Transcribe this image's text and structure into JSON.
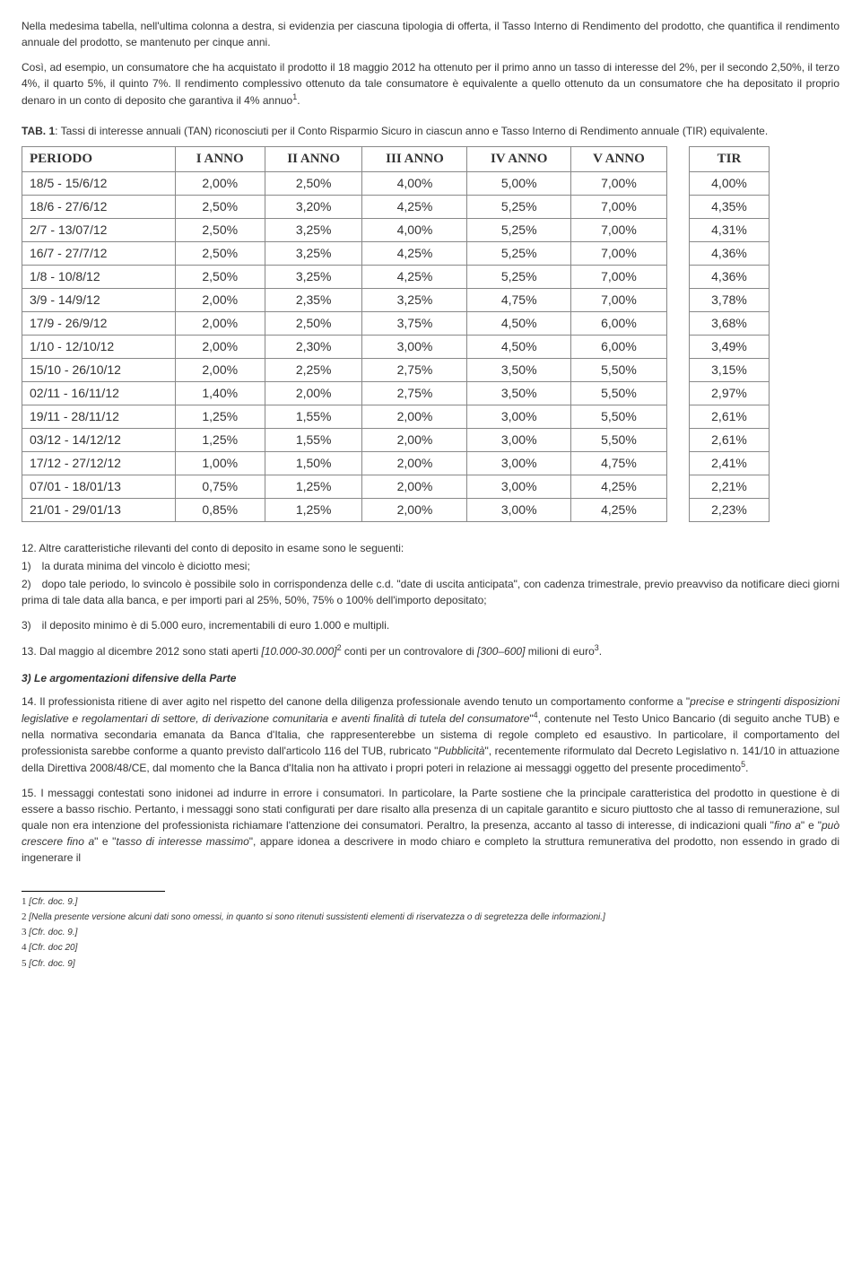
{
  "para1": "Nella medesima tabella, nell'ultima colonna a destra, si evidenzia per ciascuna tipologia di offerta, il Tasso Interno di Rendimento del prodotto, che quantifica il rendimento annuale del prodotto, se mantenuto per cinque anni.",
  "para2_a": "Così, ad esempio, un consumatore che ha acquistato il prodotto il 18 maggio 2012 ha ottenuto per il primo anno un tasso di interesse del 2%, per il secondo 2,50%, il terzo 4%, il quarto 5%, il quinto 7%. Il rendimento complessivo ottenuto da tale consumatore è equivalente a quello ottenuto da un consumatore che ha depositato il proprio denaro in un conto di deposito che garantiva il 4% annuo",
  "para2_b": ".",
  "tab_label": "TAB. 1",
  "tab_caption": ": Tassi di interesse annuali (TAN) riconosciuti per il Conto Risparmio Sicuro in ciascun anno e Tasso Interno di Rendimento annuale (TIR) equivalente.",
  "table": {
    "headers": [
      "PERIODO",
      "I ANNO",
      "II ANNO",
      "III ANNO",
      "IV ANNO",
      "V ANNO"
    ],
    "tir_header": "TIR",
    "rows": [
      [
        "18/5 - 15/6/12",
        "2,00%",
        "2,50%",
        "4,00%",
        "5,00%",
        "7,00%",
        "4,00%"
      ],
      [
        "18/6 - 27/6/12",
        "2,50%",
        "3,20%",
        "4,25%",
        "5,25%",
        "7,00%",
        "4,35%"
      ],
      [
        "2/7 - 13/07/12",
        "2,50%",
        "3,25%",
        "4,00%",
        "5,25%",
        "7,00%",
        "4,31%"
      ],
      [
        "16/7 - 27/7/12",
        "2,50%",
        "3,25%",
        "4,25%",
        "5,25%",
        "7,00%",
        "4,36%"
      ],
      [
        "1/8 - 10/8/12",
        "2,50%",
        "3,25%",
        "4,25%",
        "5,25%",
        "7,00%",
        "4,36%"
      ],
      [
        "3/9 - 14/9/12",
        "2,00%",
        "2,35%",
        "3,25%",
        "4,75%",
        "7,00%",
        "3,78%"
      ],
      [
        "17/9 - 26/9/12",
        "2,00%",
        "2,50%",
        "3,75%",
        "4,50%",
        "6,00%",
        "3,68%"
      ],
      [
        "1/10 - 12/10/12",
        "2,00%",
        "2,30%",
        "3,00%",
        "4,50%",
        "6,00%",
        "3,49%"
      ],
      [
        "15/10 - 26/10/12",
        "2,00%",
        "2,25%",
        "2,75%",
        "3,50%",
        "5,50%",
        "3,15%"
      ],
      [
        "02/11 - 16/11/12",
        "1,40%",
        "2,00%",
        "2,75%",
        "3,50%",
        "5,50%",
        "2,97%"
      ],
      [
        "19/11 - 28/11/12",
        "1,25%",
        "1,55%",
        "2,00%",
        "3,00%",
        "5,50%",
        "2,61%"
      ],
      [
        "03/12 - 14/12/12",
        "1,25%",
        "1,55%",
        "2,00%",
        "3,00%",
        "5,50%",
        "2,61%"
      ],
      [
        "17/12 - 27/12/12",
        "1,00%",
        "1,50%",
        "2,00%",
        "3,00%",
        "4,75%",
        "2,41%"
      ],
      [
        "07/01 - 18/01/13",
        "0,75%",
        "1,25%",
        "2,00%",
        "3,00%",
        "4,25%",
        "2,21%"
      ],
      [
        "21/01 - 29/01/13",
        "0,85%",
        "1,25%",
        "2,00%",
        "3,00%",
        "4,25%",
        "2,23%"
      ]
    ]
  },
  "p12_intro": "12. Altre caratteristiche rilevanti del conto di deposito in esame sono le seguenti:",
  "p12_1": "1) la durata minima del vincolo è diciotto mesi;",
  "p12_2": "2) dopo tale periodo, lo svincolo è possibile solo in corrispondenza delle c.d. \"date di uscita anticipata\", con cadenza trimestrale, previo preavviso da notificare dieci giorni prima di tale data alla banca, e per importi pari al 25%, 50%, 75% o 100% dell'importo depositato;",
  "p12_3": "3) il deposito minimo è di 5.000 euro, incrementabili di euro 1.000 e multipli.",
  "p13_a": "13. Dal maggio al dicembre 2012 sono stati aperti ",
  "p13_b": "[10.000-30.000]",
  "p13_c": " conti per un controvalore di ",
  "p13_d": "[300–600]",
  "p13_e": " milioni di euro",
  "p13_f": ".",
  "section3_title": "3) Le argomentazioni difensive della Parte",
  "p14_a": "14. Il professionista ritiene di aver agito nel rispetto del canone della diligenza professionale avendo tenuto un comportamento conforme a \"",
  "p14_b": "precise e stringenti disposizioni legislative e regolamentari di settore, di derivazione comunitaria e aventi finalità di tutela del consumatore",
  "p14_c": "\"",
  "p14_d": ", contenute nel Testo Unico Bancario (di seguito anche TUB) e nella normativa secondaria emanata da Banca d'Italia, che rappresenterebbe un sistema di regole completo ed esaustivo. In particolare, il comportamento del professionista sarebbe conforme a quanto previsto dall'articolo 116 del TUB, rubricato \"",
  "p14_e": "Pubblicità",
  "p14_f": "\", recentemente riformulato dal Decreto Legislativo n. 141/10 in attuazione della Direttiva 2008/48/CE, dal momento che la Banca d'Italia non ha attivato i propri poteri in relazione ai messaggi oggetto del presente procedimento",
  "p14_g": ".",
  "p15_a": "15. I messaggi contestati sono inidonei ad indurre in errore i consumatori. In particolare, la Parte sostiene che la principale caratteristica del prodotto in questione è di essere a basso rischio. Pertanto, i messaggi sono stati configurati per dare risalto alla presenza di un capitale garantito e sicuro piuttosto che al tasso di remunerazione, sul quale non era intenzione del professionista richiamare l'attenzione dei consumatori. Peraltro, la presenza, accanto al tasso di interesse, di indicazioni quali \"",
  "p15_b": "fino a",
  "p15_c": "\" e \"",
  "p15_d": "può crescere fino a",
  "p15_e": "\" e \"",
  "p15_f": "tasso di interesse massimo",
  "p15_g": "\", appare idonea a descrivere in modo chiaro e completo la struttura remunerativa del prodotto, non essendo in grado di ingenerare il",
  "footnotes": {
    "f1": "[Cfr. doc. 9.]",
    "f2": "[Nella presente versione alcuni dati sono omessi, in quanto si sono ritenuti sussistenti elementi di riservatezza o di segretezza delle informazioni.]",
    "f3": "[Cfr. doc. 9.]",
    "f4": "[Cfr. doc 20]",
    "f5": "[Cfr. doc. 9]"
  }
}
